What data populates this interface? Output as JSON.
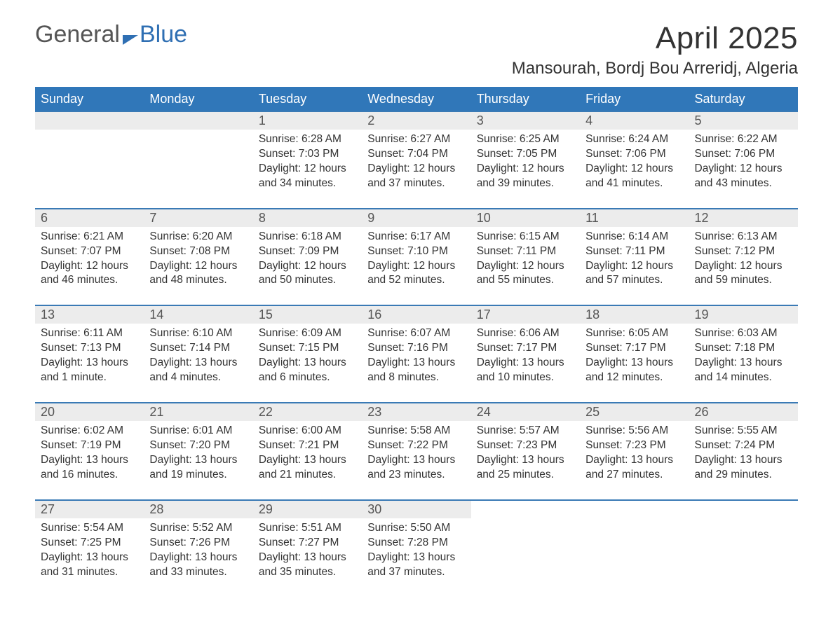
{
  "brand": {
    "general": "General",
    "blue": "Blue"
  },
  "title": "April 2025",
  "location": "Mansourah, Bordj Bou Arreridj, Algeria",
  "colors": {
    "header_bg": "#3077b9",
    "header_text": "#ffffff",
    "daynum_bg": "#ececec",
    "row_border": "#3a7ab5",
    "brand_blue": "#2f6fb3",
    "text": "#333333",
    "bg": "#ffffff"
  },
  "daysOfWeek": [
    "Sunday",
    "Monday",
    "Tuesday",
    "Wednesday",
    "Thursday",
    "Friday",
    "Saturday"
  ],
  "weeks": [
    [
      null,
      null,
      {
        "n": "1",
        "sunrise": "6:28 AM",
        "sunset": "7:03 PM",
        "daylight": "12 hours and 34 minutes."
      },
      {
        "n": "2",
        "sunrise": "6:27 AM",
        "sunset": "7:04 PM",
        "daylight": "12 hours and 37 minutes."
      },
      {
        "n": "3",
        "sunrise": "6:25 AM",
        "sunset": "7:05 PM",
        "daylight": "12 hours and 39 minutes."
      },
      {
        "n": "4",
        "sunrise": "6:24 AM",
        "sunset": "7:06 PM",
        "daylight": "12 hours and 41 minutes."
      },
      {
        "n": "5",
        "sunrise": "6:22 AM",
        "sunset": "7:06 PM",
        "daylight": "12 hours and 43 minutes."
      }
    ],
    [
      {
        "n": "6",
        "sunrise": "6:21 AM",
        "sunset": "7:07 PM",
        "daylight": "12 hours and 46 minutes."
      },
      {
        "n": "7",
        "sunrise": "6:20 AM",
        "sunset": "7:08 PM",
        "daylight": "12 hours and 48 minutes."
      },
      {
        "n": "8",
        "sunrise": "6:18 AM",
        "sunset": "7:09 PM",
        "daylight": "12 hours and 50 minutes."
      },
      {
        "n": "9",
        "sunrise": "6:17 AM",
        "sunset": "7:10 PM",
        "daylight": "12 hours and 52 minutes."
      },
      {
        "n": "10",
        "sunrise": "6:15 AM",
        "sunset": "7:11 PM",
        "daylight": "12 hours and 55 minutes."
      },
      {
        "n": "11",
        "sunrise": "6:14 AM",
        "sunset": "7:11 PM",
        "daylight": "12 hours and 57 minutes."
      },
      {
        "n": "12",
        "sunrise": "6:13 AM",
        "sunset": "7:12 PM",
        "daylight": "12 hours and 59 minutes."
      }
    ],
    [
      {
        "n": "13",
        "sunrise": "6:11 AM",
        "sunset": "7:13 PM",
        "daylight": "13 hours and 1 minute."
      },
      {
        "n": "14",
        "sunrise": "6:10 AM",
        "sunset": "7:14 PM",
        "daylight": "13 hours and 4 minutes."
      },
      {
        "n": "15",
        "sunrise": "6:09 AM",
        "sunset": "7:15 PM",
        "daylight": "13 hours and 6 minutes."
      },
      {
        "n": "16",
        "sunrise": "6:07 AM",
        "sunset": "7:16 PM",
        "daylight": "13 hours and 8 minutes."
      },
      {
        "n": "17",
        "sunrise": "6:06 AM",
        "sunset": "7:17 PM",
        "daylight": "13 hours and 10 minutes."
      },
      {
        "n": "18",
        "sunrise": "6:05 AM",
        "sunset": "7:17 PM",
        "daylight": "13 hours and 12 minutes."
      },
      {
        "n": "19",
        "sunrise": "6:03 AM",
        "sunset": "7:18 PM",
        "daylight": "13 hours and 14 minutes."
      }
    ],
    [
      {
        "n": "20",
        "sunrise": "6:02 AM",
        "sunset": "7:19 PM",
        "daylight": "13 hours and 16 minutes."
      },
      {
        "n": "21",
        "sunrise": "6:01 AM",
        "sunset": "7:20 PM",
        "daylight": "13 hours and 19 minutes."
      },
      {
        "n": "22",
        "sunrise": "6:00 AM",
        "sunset": "7:21 PM",
        "daylight": "13 hours and 21 minutes."
      },
      {
        "n": "23",
        "sunrise": "5:58 AM",
        "sunset": "7:22 PM",
        "daylight": "13 hours and 23 minutes."
      },
      {
        "n": "24",
        "sunrise": "5:57 AM",
        "sunset": "7:23 PM",
        "daylight": "13 hours and 25 minutes."
      },
      {
        "n": "25",
        "sunrise": "5:56 AM",
        "sunset": "7:23 PM",
        "daylight": "13 hours and 27 minutes."
      },
      {
        "n": "26",
        "sunrise": "5:55 AM",
        "sunset": "7:24 PM",
        "daylight": "13 hours and 29 minutes."
      }
    ],
    [
      {
        "n": "27",
        "sunrise": "5:54 AM",
        "sunset": "7:25 PM",
        "daylight": "13 hours and 31 minutes."
      },
      {
        "n": "28",
        "sunrise": "5:52 AM",
        "sunset": "7:26 PM",
        "daylight": "13 hours and 33 minutes."
      },
      {
        "n": "29",
        "sunrise": "5:51 AM",
        "sunset": "7:27 PM",
        "daylight": "13 hours and 35 minutes."
      },
      {
        "n": "30",
        "sunrise": "5:50 AM",
        "sunset": "7:28 PM",
        "daylight": "13 hours and 37 minutes."
      },
      null,
      null,
      null
    ]
  ],
  "labels": {
    "sunrise": "Sunrise: ",
    "sunset": "Sunset: ",
    "daylight": "Daylight: "
  }
}
